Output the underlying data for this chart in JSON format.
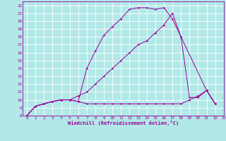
{
  "xlabel": "Windchill (Refroidissement éolien,°C)",
  "bg_color": "#b2e8e8",
  "grid_color": "#ffffff",
  "line_color": "#990099",
  "xlim": [
    -0.5,
    23
  ],
  "ylim": [
    8,
    22.5
  ],
  "xticks": [
    0,
    1,
    2,
    3,
    4,
    5,
    6,
    7,
    8,
    9,
    10,
    11,
    12,
    13,
    14,
    15,
    16,
    17,
    18,
    19,
    20,
    21,
    22,
    23
  ],
  "yticks": [
    8,
    9,
    10,
    11,
    12,
    13,
    14,
    15,
    16,
    17,
    18,
    19,
    20,
    21,
    22
  ],
  "curve1_x": [
    0,
    1,
    2,
    3,
    4,
    5,
    6,
    7,
    8,
    9,
    10,
    11,
    12,
    13,
    14,
    15,
    16,
    17,
    18,
    21,
    22
  ],
  "curve1_y": [
    8.0,
    9.2,
    9.5,
    9.8,
    10.0,
    10.0,
    9.8,
    14.0,
    16.2,
    18.2,
    19.3,
    20.3,
    21.5,
    21.7,
    21.7,
    21.5,
    21.7,
    20.3,
    18.0,
    11.2,
    9.5
  ],
  "curve2_x": [
    0,
    1,
    2,
    3,
    4,
    5,
    6,
    7,
    8,
    9,
    10,
    11,
    12,
    13,
    14,
    15,
    16,
    17,
    18,
    19,
    20,
    21,
    22
  ],
  "curve2_y": [
    8.0,
    9.2,
    9.5,
    9.8,
    10.0,
    10.0,
    10.5,
    11.0,
    12.0,
    13.0,
    14.0,
    15.0,
    16.0,
    17.0,
    17.5,
    18.5,
    19.5,
    21.0,
    18.0,
    10.3,
    10.3,
    11.2,
    9.5
  ],
  "curve3_x": [
    0,
    1,
    2,
    3,
    4,
    5,
    6,
    7,
    8,
    9,
    10,
    11,
    12,
    13,
    14,
    15,
    16,
    17,
    18,
    19,
    20,
    21,
    22
  ],
  "curve3_y": [
    8.0,
    9.2,
    9.5,
    9.8,
    10.0,
    10.0,
    9.8,
    9.5,
    9.5,
    9.5,
    9.5,
    9.5,
    9.5,
    9.5,
    9.5,
    9.5,
    9.5,
    9.5,
    9.5,
    10.0,
    10.5,
    11.2,
    9.5
  ]
}
